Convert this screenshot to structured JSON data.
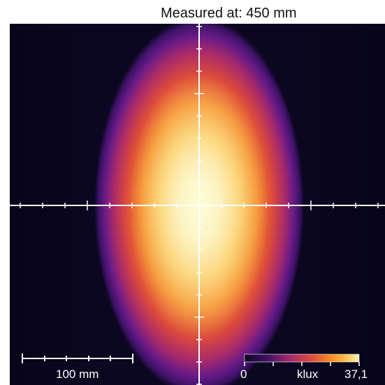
{
  "title": "Measured at: 450 mm",
  "scale_bar": {
    "label": "100 mm"
  },
  "colorbar": {
    "min_label": "0",
    "unit_label": "klux",
    "max_label": "37,1",
    "min": 0,
    "max": 37.1,
    "colors": [
      "#0c0720",
      "#3e1268",
      "#a82a6a",
      "#dc4a3c",
      "#f58a22",
      "#fbbf45",
      "#fff2b8"
    ]
  }
}
